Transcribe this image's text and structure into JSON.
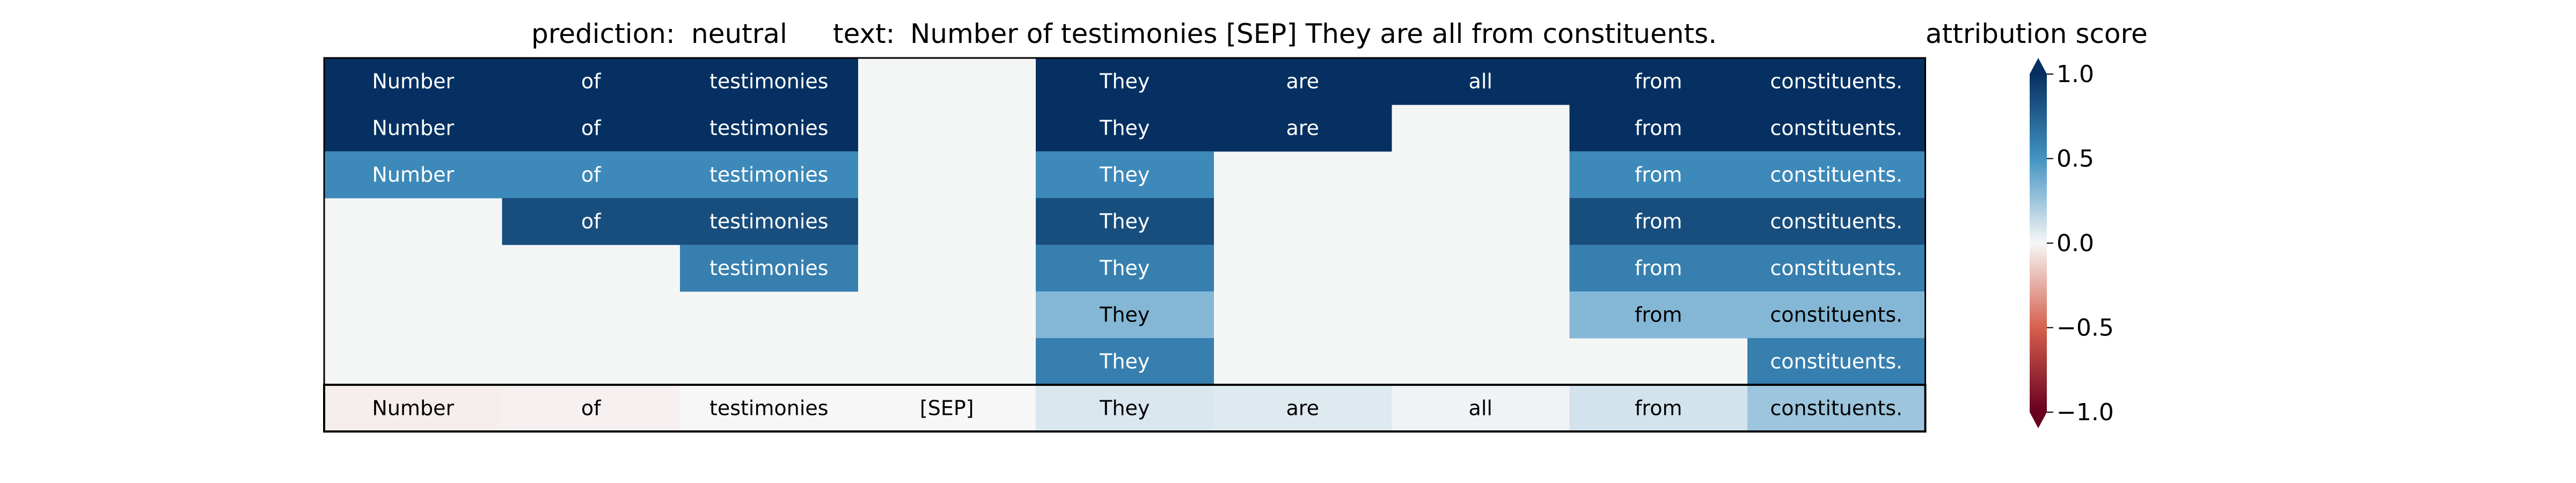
{
  "title": {
    "prediction_label": "prediction:",
    "prediction_value": "neutral",
    "text_label": "text:",
    "text_value": "Number of testimonies [SEP] They are all from constituents."
  },
  "colorbar": {
    "title": "attribution score",
    "ticks": [
      "1.0",
      "0.5",
      "0.0",
      "−0.5",
      "−1.0"
    ],
    "tick_values": [
      1.0,
      0.5,
      0.0,
      -0.5,
      -1.0
    ],
    "colormap": "RdBu",
    "colors": {
      "neg_end": "#67001f",
      "neg_mid": "#d6604d",
      "zero": "#f7f7f7",
      "pos_mid": "#4393c3",
      "pos_end": "#053061"
    }
  },
  "colors": {
    "masked_cell": "#f4f6f6",
    "light_text": "#ffffff",
    "dark_text": "#000000",
    "border": "#000000"
  },
  "chart_data": {
    "type": "heatmap",
    "tokens": [
      "Number",
      "of",
      "testimonies",
      "[SEP]",
      "They",
      "are",
      "all",
      "from",
      "constituents."
    ],
    "mask_rows": [
      [
        1,
        1,
        1,
        0,
        1,
        1,
        1,
        1,
        1
      ],
      [
        1,
        1,
        1,
        0,
        1,
        1,
        0,
        1,
        1
      ],
      [
        1,
        1,
        1,
        0,
        1,
        0,
        0,
        1,
        1
      ],
      [
        0,
        1,
        1,
        0,
        1,
        0,
        0,
        1,
        1
      ],
      [
        0,
        0,
        1,
        0,
        1,
        0,
        0,
        1,
        1
      ],
      [
        0,
        0,
        0,
        0,
        1,
        0,
        0,
        1,
        1
      ],
      [
        0,
        0,
        0,
        0,
        1,
        0,
        0,
        0,
        1
      ]
    ],
    "row_values": [
      1.0,
      1.0,
      0.55,
      0.85,
      0.6,
      0.32,
      0.6
    ],
    "attribution_scores": [
      -0.03,
      -0.02,
      0.0,
      0.0,
      0.08,
      0.07,
      0.02,
      0.1,
      0.25
    ],
    "clim": [
      -1.0,
      1.0
    ]
  }
}
